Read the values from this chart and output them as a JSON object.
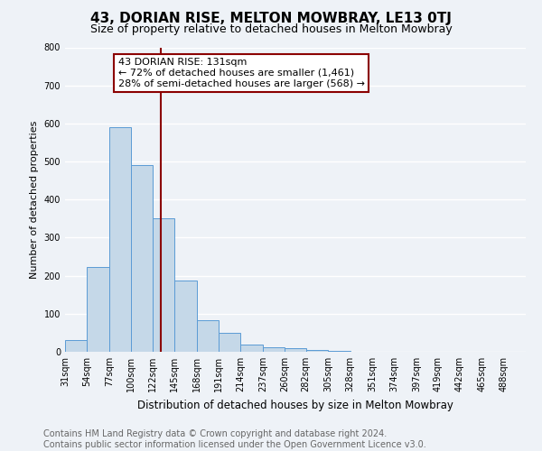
{
  "title": "43, DORIAN RISE, MELTON MOWBRAY, LE13 0TJ",
  "subtitle": "Size of property relative to detached houses in Melton Mowbray",
  "xlabel": "Distribution of detached houses by size in Melton Mowbray",
  "ylabel": "Number of detached properties",
  "bin_labels": [
    "31sqm",
    "54sqm",
    "77sqm",
    "100sqm",
    "122sqm",
    "145sqm",
    "168sqm",
    "191sqm",
    "214sqm",
    "237sqm",
    "260sqm",
    "282sqm",
    "305sqm",
    "328sqm",
    "351sqm",
    "374sqm",
    "397sqm",
    "419sqm",
    "442sqm",
    "465sqm",
    "488sqm"
  ],
  "bin_edges": [
    31,
    54,
    77,
    100,
    122,
    145,
    168,
    191,
    214,
    237,
    260,
    282,
    305,
    328,
    351,
    374,
    397,
    419,
    442,
    465,
    488
  ],
  "bar_heights": [
    30,
    222,
    590,
    490,
    350,
    187,
    83,
    50,
    20,
    13,
    9,
    4,
    3,
    1,
    1,
    0,
    0,
    0,
    0,
    0
  ],
  "bar_color": "#c5d8e8",
  "bar_edge_color": "#5b9bd5",
  "vline_x": 131,
  "vline_color": "#8b0000",
  "annotation_line1": "43 DORIAN RISE: 131sqm",
  "annotation_line2": "← 72% of detached houses are smaller (1,461)",
  "annotation_line3": "28% of semi-detached houses are larger (568) →",
  "annotation_box_color": "white",
  "annotation_box_edge_color": "#8b0000",
  "ylim": [
    0,
    800
  ],
  "yticks": [
    0,
    100,
    200,
    300,
    400,
    500,
    600,
    700,
    800
  ],
  "footer_line1": "Contains HM Land Registry data © Crown copyright and database right 2024.",
  "footer_line2": "Contains public sector information licensed under the Open Government Licence v3.0.",
  "background_color": "#eef2f7",
  "grid_color": "#ffffff",
  "title_fontsize": 11,
  "subtitle_fontsize": 9,
  "footer_fontsize": 7,
  "annotation_fontsize": 8,
  "ylabel_fontsize": 8,
  "xlabel_fontsize": 8.5,
  "tick_fontsize": 7
}
